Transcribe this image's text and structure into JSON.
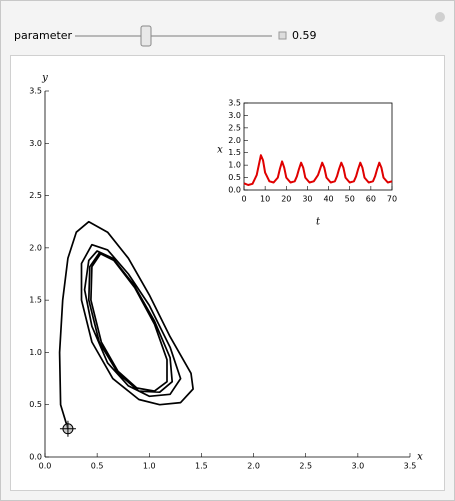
{
  "controls": {
    "label": "parameter",
    "value": 0.59
  },
  "chart_data": [
    {
      "type": "line",
      "x_label": "x",
      "y_label": "y",
      "xlim": [
        0,
        3.5
      ],
      "ylim": [
        0,
        3.5
      ],
      "xticks": [
        {
          "value": 0,
          "label": "0.0"
        },
        {
          "value": 0.5,
          "label": "0.5"
        },
        {
          "value": 1,
          "label": "1.0"
        },
        {
          "value": 1.5,
          "label": "1.5"
        },
        {
          "value": 2,
          "label": "2.0"
        },
        {
          "value": 2.5,
          "label": "2.5"
        },
        {
          "value": 3,
          "label": "3.0"
        },
        {
          "value": 3.5,
          "label": "3.5"
        }
      ],
      "yticks": [
        {
          "value": 0,
          "label": "0.0"
        },
        {
          "value": 0.5,
          "label": "0.5"
        },
        {
          "value": 1,
          "label": "1.0"
        },
        {
          "value": 1.5,
          "label": "1.5"
        },
        {
          "value": 2,
          "label": "2.0"
        },
        {
          "value": 2.5,
          "label": "2.5"
        },
        {
          "value": 3,
          "label": "3.0"
        },
        {
          "value": 3.5,
          "label": "3.5"
        }
      ],
      "x": [
        0.22,
        0.15,
        0.14,
        0.17,
        0.22,
        0.3,
        0.42,
        0.6,
        0.8,
        1.0,
        1.2,
        1.4,
        1.42,
        1.3,
        1.1,
        0.9,
        0.65,
        0.45,
        0.35,
        0.35,
        0.45,
        0.6,
        0.8,
        1.0,
        1.2,
        1.3,
        1.2,
        1.0,
        0.8,
        0.6,
        0.45,
        0.38,
        0.42,
        0.5,
        0.65,
        0.85,
        1.05,
        1.2,
        1.22,
        1.1,
        0.9,
        0.7,
        0.52,
        0.42,
        0.43,
        0.52,
        0.66,
        0.86,
        1.05,
        1.17,
        1.17,
        1.05,
        0.88,
        0.7,
        0.54,
        0.44,
        0.45,
        0.53
      ],
      "series": [
        {
          "color": "#000000",
          "values": [
            0.27,
            0.5,
            1.0,
            1.5,
            1.9,
            2.15,
            2.25,
            2.15,
            1.9,
            1.55,
            1.15,
            0.8,
            0.65,
            0.52,
            0.5,
            0.55,
            0.75,
            1.1,
            1.5,
            1.85,
            2.03,
            1.98,
            1.75,
            1.45,
            1.05,
            0.75,
            0.6,
            0.58,
            0.68,
            0.9,
            1.25,
            1.6,
            1.88,
            1.97,
            1.9,
            1.65,
            1.3,
            0.95,
            0.72,
            0.62,
            0.63,
            0.8,
            1.1,
            1.5,
            1.82,
            1.95,
            1.88,
            1.62,
            1.27,
            0.93,
            0.72,
            0.63,
            0.66,
            0.82,
            1.1,
            1.5,
            1.82,
            1.94
          ]
        }
      ]
    },
    {
      "type": "line",
      "x_label": "t",
      "y_label": "x",
      "frame": true,
      "xlim": [
        0,
        70
      ],
      "ylim": [
        0,
        3.5
      ],
      "xticks": [
        0,
        10,
        20,
        30,
        40,
        50,
        60,
        70
      ],
      "yticks": [
        {
          "value": 0,
          "label": "0.0"
        },
        {
          "value": 0.5,
          "label": "0.5"
        },
        {
          "value": 1,
          "label": "1.0"
        },
        {
          "value": 1.5,
          "label": "1.5"
        },
        {
          "value": 2,
          "label": "2.0"
        },
        {
          "value": 2.5,
          "label": "2.5"
        },
        {
          "value": 3,
          "label": "3.0"
        },
        {
          "value": 3.5,
          "label": "3.5"
        }
      ],
      "x": [
        0,
        2,
        4,
        6,
        7,
        8,
        9,
        10,
        12,
        14,
        16,
        17,
        18,
        19,
        20,
        22,
        24,
        25,
        26,
        27,
        28,
        29,
        31,
        33,
        35,
        36,
        37,
        38,
        39,
        41,
        43,
        44,
        45,
        46,
        47,
        48,
        50,
        52,
        53,
        54,
        55,
        56,
        57,
        59,
        61,
        62,
        63,
        64,
        65,
        66,
        68,
        70
      ],
      "series": [
        {
          "color": "#e00000",
          "values": [
            0.27,
            0.2,
            0.25,
            0.6,
            1.0,
            1.4,
            1.2,
            0.7,
            0.35,
            0.3,
            0.5,
            0.85,
            1.15,
            0.9,
            0.5,
            0.3,
            0.35,
            0.55,
            0.85,
            1.1,
            0.9,
            0.5,
            0.3,
            0.35,
            0.6,
            0.85,
            1.1,
            0.9,
            0.5,
            0.3,
            0.35,
            0.55,
            0.85,
            1.1,
            0.9,
            0.5,
            0.3,
            0.35,
            0.55,
            0.85,
            1.1,
            0.9,
            0.5,
            0.3,
            0.35,
            0.55,
            0.85,
            1.1,
            0.9,
            0.5,
            0.3,
            0.35
          ]
        }
      ]
    }
  ]
}
